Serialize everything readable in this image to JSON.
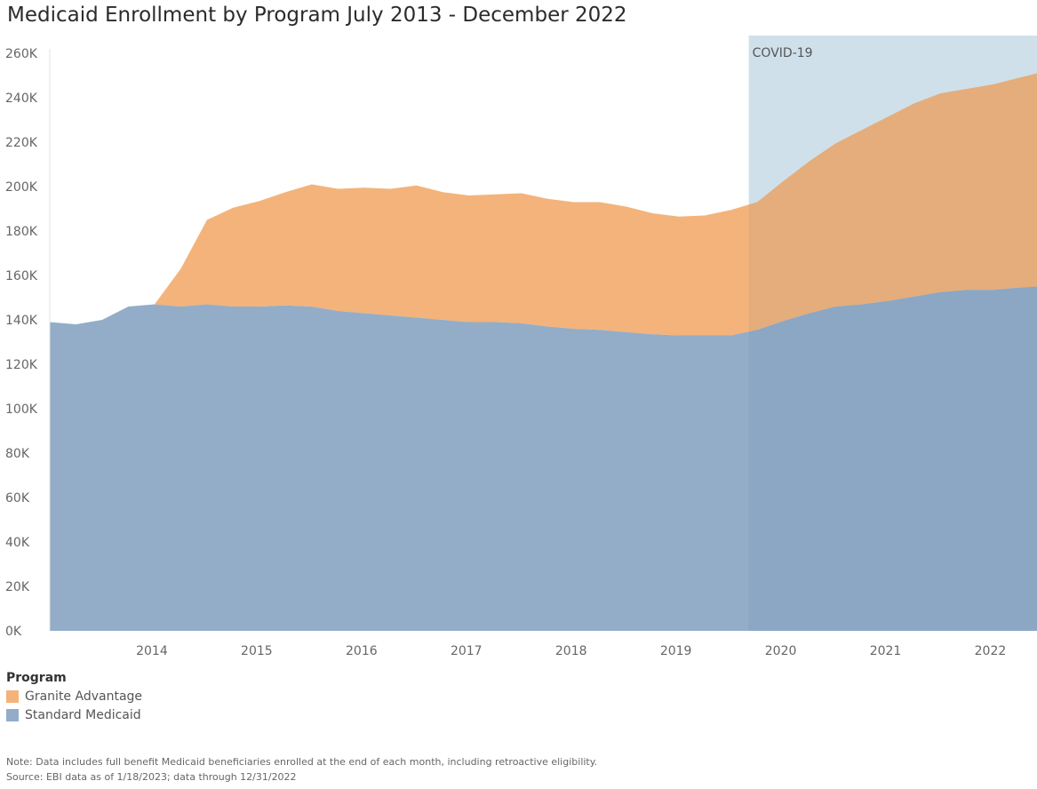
{
  "title": "Medicaid Enrollment by Program July 2013 - December 2022",
  "legend": {
    "title": "Program",
    "items": [
      {
        "label": "Granite Advantage",
        "color": "#f3b37a"
      },
      {
        "label": "Standard Medicaid",
        "color": "#93adc8"
      }
    ]
  },
  "notes": {
    "line1": "Note: Data includes full benefit Medicaid beneficiaries enrolled at the end of each month, including retroactive eligibility.",
    "line2": "Source: EBI data as of 1/18/2023; data through 12/31/2022"
  },
  "chart_data": {
    "type": "area",
    "stacked": true,
    "x_start": "2013-07",
    "x_end": "2022-12",
    "x": [
      2013.5,
      2013.75,
      2014.0,
      2014.25,
      2014.5,
      2014.75,
      2015.0,
      2015.25,
      2015.5,
      2015.75,
      2016.0,
      2016.25,
      2016.5,
      2016.75,
      2017.0,
      2017.25,
      2017.5,
      2017.75,
      2018.0,
      2018.25,
      2018.5,
      2018.75,
      2019.0,
      2019.25,
      2019.5,
      2019.75,
      2020.0,
      2020.25,
      2020.5,
      2020.75,
      2021.0,
      2021.25,
      2021.5,
      2021.75,
      2022.0,
      2022.25,
      2022.5,
      2022.75,
      2022.92
    ],
    "series": [
      {
        "name": "Standard Medicaid",
        "color": "#93adc8",
        "values": [
          139000,
          138000,
          140000,
          146000,
          147000,
          146000,
          147000,
          146000,
          146000,
          146500,
          146000,
          144000,
          143000,
          142000,
          141000,
          140000,
          139000,
          139000,
          138500,
          137000,
          136000,
          135500,
          134500,
          133500,
          133000,
          133000,
          133000,
          135500,
          139500,
          143000,
          146000,
          147000,
          148500,
          150500,
          152500,
          153500,
          153500,
          154500,
          155000
        ]
      },
      {
        "name": "Granite Advantage",
        "color": "#f3b37a",
        "values": [
          0,
          0,
          0,
          0,
          0,
          17000,
          38000,
          44500,
          47500,
          51000,
          55000,
          55000,
          56500,
          57000,
          59500,
          57500,
          57000,
          57500,
          58500,
          57500,
          57000,
          57500,
          56500,
          54500,
          53500,
          54000,
          56500,
          57500,
          63000,
          68500,
          73500,
          78500,
          83000,
          87000,
          89500,
          90500,
          92500,
          94500,
          96000
        ]
      }
    ],
    "xticks": [
      "2014",
      "2015",
      "2016",
      "2017",
      "2018",
      "2019",
      "2020",
      "2021",
      "2022"
    ],
    "yticks": [
      "0K",
      "20K",
      "40K",
      "60K",
      "80K",
      "100K",
      "120K",
      "140K",
      "160K",
      "180K",
      "200K",
      "220K",
      "240K",
      "260K"
    ],
    "ylim": [
      0,
      260000
    ],
    "xlim": [
      2013.5,
      2022.92
    ],
    "annotation": {
      "label": "COVID-19",
      "start": 2020.17,
      "end": 2022.92,
      "color": "#dceaf1"
    },
    "grid": false
  }
}
